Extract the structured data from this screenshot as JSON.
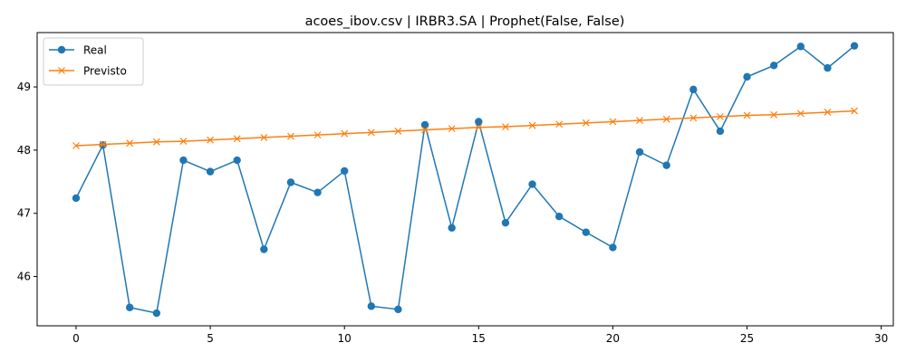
{
  "chart_data": {
    "type": "line",
    "title": "acoes_ibov.csv | IRBR3.SA | Prophet(False, False)",
    "xlabel": "",
    "ylabel": "",
    "xlim": [
      -1.45,
      30.45
    ],
    "ylim": [
      45.22,
      49.86
    ],
    "xticks": [
      0,
      5,
      10,
      15,
      20,
      25,
      30
    ],
    "yticks": [
      46,
      47,
      48,
      49
    ],
    "grid": false,
    "legend_position": "top-left",
    "x": [
      0,
      1,
      2,
      3,
      4,
      5,
      6,
      7,
      8,
      9,
      10,
      11,
      12,
      13,
      14,
      15,
      16,
      17,
      18,
      19,
      20,
      21,
      22,
      23,
      24,
      25,
      26,
      27,
      28,
      29
    ],
    "series": [
      {
        "name": "Real",
        "color": "#1f77b4",
        "marker": "circle",
        "values": [
          47.24,
          48.08,
          45.51,
          45.42,
          47.84,
          47.66,
          47.84,
          46.43,
          47.49,
          47.33,
          47.67,
          45.53,
          45.48,
          48.4,
          46.77,
          48.45,
          46.85,
          47.46,
          46.95,
          46.7,
          46.46,
          47.97,
          47.76,
          48.96,
          48.3,
          49.16,
          49.34,
          49.64,
          49.3,
          49.65
        ]
      },
      {
        "name": "Previsto",
        "color": "#ff7f0e",
        "marker": "x",
        "values": [
          48.07,
          48.09,
          48.11,
          48.13,
          48.14,
          48.16,
          48.18,
          48.2,
          48.22,
          48.24,
          48.26,
          48.28,
          48.3,
          48.32,
          48.34,
          48.36,
          48.37,
          48.39,
          48.41,
          48.43,
          48.45,
          48.47,
          48.49,
          48.51,
          48.53,
          48.55,
          48.56,
          48.58,
          48.6,
          48.62
        ]
      }
    ]
  }
}
